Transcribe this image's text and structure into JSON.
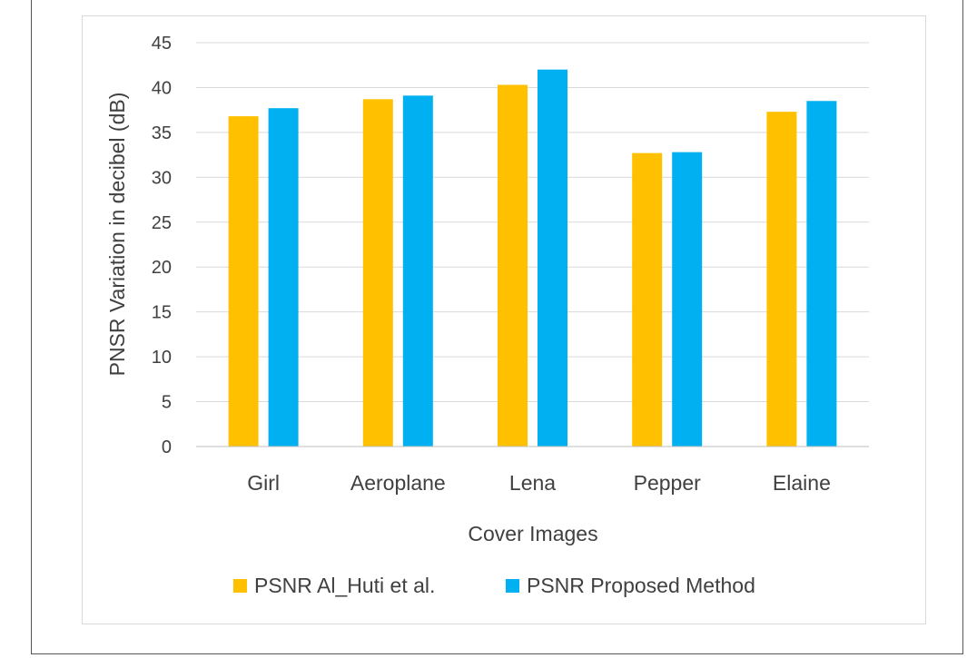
{
  "chart_data": {
    "type": "bar",
    "title": "",
    "xlabel": "Cover Images",
    "ylabel": "PNSR Variation in decibel (dB)",
    "categories": [
      "Girl",
      "Aeroplane",
      "Lena",
      "Pepper",
      "Elaine"
    ],
    "series": [
      {
        "name": "PSNR Al_Huti et al.",
        "color": "#FFC000",
        "values": [
          36.8,
          38.7,
          40.3,
          32.7,
          37.3
        ]
      },
      {
        "name": "PSNR Proposed Method",
        "color": "#00B0F0",
        "values": [
          37.7,
          39.1,
          42.0,
          32.8,
          38.5
        ]
      }
    ],
    "ylim": [
      0,
      45
    ],
    "yticks": [
      "0",
      "5",
      "10",
      "15",
      "20",
      "25",
      "30",
      "35",
      "40",
      "45"
    ],
    "grid": true,
    "gridColor": "#d9d9d9",
    "legend_position": "bottom"
  }
}
